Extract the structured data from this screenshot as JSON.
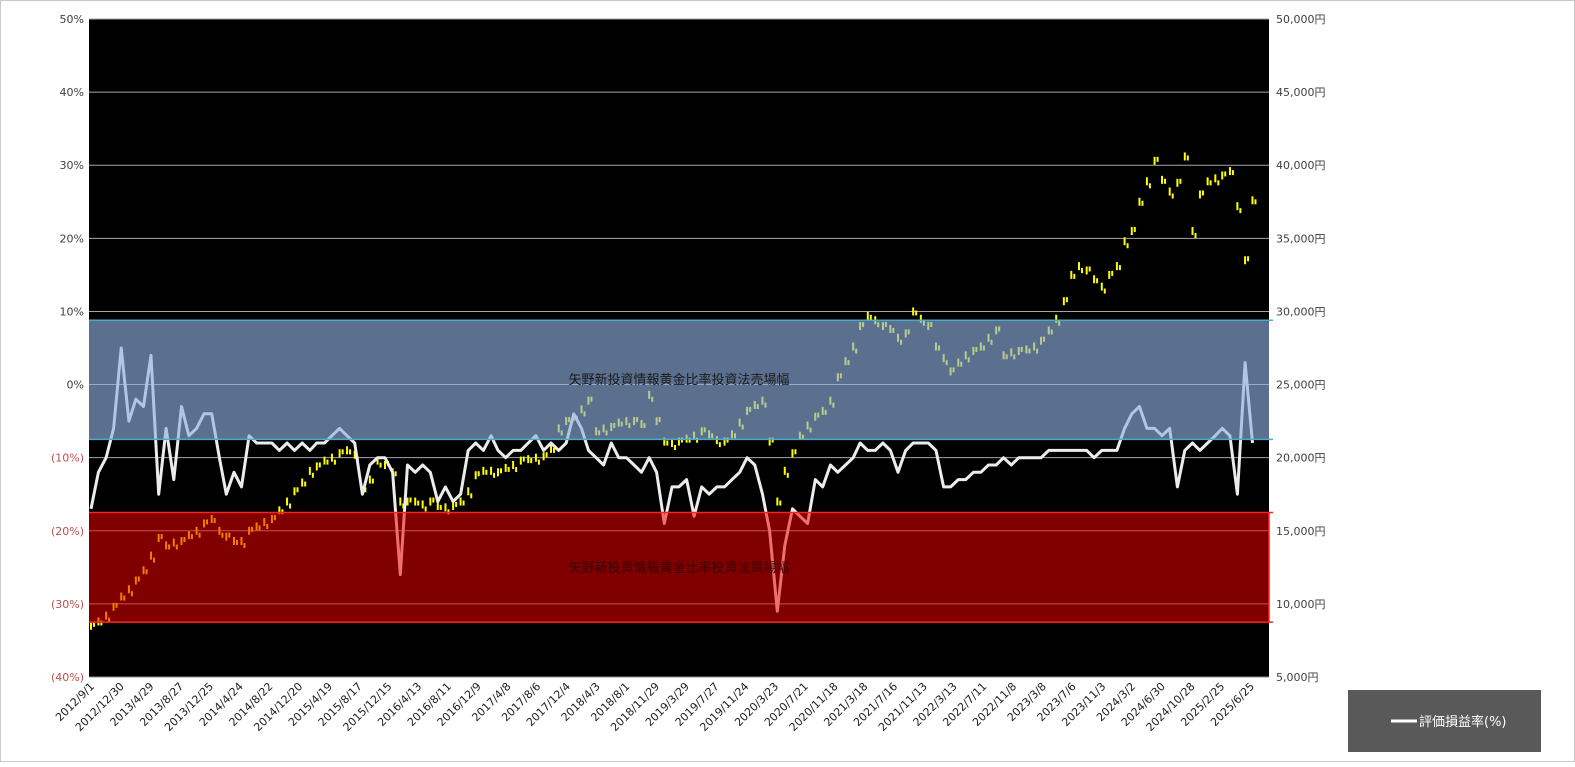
{
  "chart_data": {
    "type": "line",
    "title": "",
    "xlabel": "",
    "ylabel": "",
    "grid": true,
    "legend_position": "bottom-right",
    "x_tick_labels": [
      "2012/9/1",
      "2012/12/30",
      "2013/4/29",
      "2013/8/27",
      "2013/12/25",
      "2014/4/24",
      "2014/8/22",
      "2014/12/20",
      "2015/4/19",
      "2015/8/17",
      "2015/12/15",
      "2016/4/13",
      "2016/8/11",
      "2016/12/9",
      "2017/4/8",
      "2017/8/6",
      "2017/12/4",
      "2018/4/3",
      "2018/8/1",
      "2018/11/29",
      "2019/3/29",
      "2019/7/27",
      "2019/11/24",
      "2020/3/23",
      "2020/7/21",
      "2020/11/18",
      "2021/3/18",
      "2021/7/16",
      "2021/11/13",
      "2022/3/13",
      "2022/7/11",
      "2022/11/8",
      "2023/3/8",
      "2023/7/6",
      "2023/11/3",
      "2024/3/2",
      "2024/6/30",
      "2024/10/28",
      "2025/2/25",
      "2025/6/25"
    ],
    "y_left": {
      "ylim": [
        -40,
        50
      ],
      "ticks": [
        50,
        40,
        30,
        20,
        10,
        0,
        -10,
        -20,
        -30,
        -40
      ],
      "tick_labels": [
        "50%",
        "40%",
        "30%",
        "20%",
        "10%",
        "0%",
        "(10%)",
        "(20%)",
        "(30%)",
        "(40%)"
      ]
    },
    "y_right": {
      "ylim": [
        5000,
        50000
      ],
      "ticks": [
        50000,
        45000,
        40000,
        35000,
        30000,
        25000,
        20000,
        15000,
        10000,
        5000
      ],
      "tick_labels": [
        "50,000円",
        "45,000円",
        "40,000円",
        "35,000円",
        "30,000円",
        "25,000円",
        "20,000円",
        "15,000円",
        "10,000円",
        "5,000円"
      ]
    },
    "bands": [
      {
        "label": "矢野新投資情報黄金比率投資法売場幅",
        "from_pct": -7.5,
        "to_pct": 8.8,
        "color": "#8fafe0",
        "edge_color": "#4bacc6"
      },
      {
        "label": "矢野新投資情報黄金比率投資法買場幅",
        "from_pct": -32.5,
        "to_pct": -17.5,
        "color": "#f20000",
        "edge_color": "#ff2020"
      }
    ],
    "x": [
      "2012/09",
      "2012/10",
      "2012/11",
      "2012/12",
      "2013/01",
      "2013/02",
      "2013/03",
      "2013/04",
      "2013/05",
      "2013/06",
      "2013/07",
      "2013/08",
      "2013/09",
      "2013/10",
      "2013/11",
      "2013/12",
      "2014/01",
      "2014/02",
      "2014/03",
      "2014/04",
      "2014/05",
      "2014/06",
      "2014/07",
      "2014/08",
      "2014/09",
      "2014/10",
      "2014/11",
      "2014/12",
      "2015/01",
      "2015/02",
      "2015/03",
      "2015/04",
      "2015/05",
      "2015/06",
      "2015/07",
      "2015/08",
      "2015/09",
      "2015/10",
      "2015/11",
      "2015/12",
      "2016/01",
      "2016/02",
      "2016/03",
      "2016/04",
      "2016/05",
      "2016/06",
      "2016/07",
      "2016/08",
      "2016/09",
      "2016/10",
      "2016/11",
      "2016/12",
      "2017/01",
      "2017/02",
      "2017/03",
      "2017/04",
      "2017/05",
      "2017/06",
      "2017/07",
      "2017/08",
      "2017/09",
      "2017/10",
      "2017/11",
      "2017/12",
      "2018/01",
      "2018/02",
      "2018/03",
      "2018/04",
      "2018/05",
      "2018/06",
      "2018/07",
      "2018/08",
      "2018/09",
      "2018/10",
      "2018/11",
      "2018/12",
      "2019/01",
      "2019/02",
      "2019/03",
      "2019/04",
      "2019/05",
      "2019/06",
      "2019/07",
      "2019/08",
      "2019/09",
      "2019/10",
      "2019/11",
      "2019/12",
      "2020/01",
      "2020/02",
      "2020/03",
      "2020/04",
      "2020/05",
      "2020/06",
      "2020/07",
      "2020/08",
      "2020/09",
      "2020/10",
      "2020/11",
      "2020/12",
      "2021/01",
      "2021/02",
      "2021/03",
      "2021/04",
      "2021/05",
      "2021/06",
      "2021/07",
      "2021/08",
      "2021/09",
      "2021/10",
      "2021/11",
      "2021/12",
      "2022/01",
      "2022/02",
      "2022/03",
      "2022/04",
      "2022/05",
      "2022/06",
      "2022/07",
      "2022/08",
      "2022/09",
      "2022/10",
      "2022/11",
      "2022/12",
      "2023/01",
      "2023/02",
      "2023/03",
      "2023/04",
      "2023/05",
      "2023/06",
      "2023/07",
      "2023/08",
      "2023/09",
      "2023/10",
      "2023/11",
      "2023/12",
      "2024/01",
      "2024/02",
      "2024/03",
      "2024/04",
      "2024/05",
      "2024/06",
      "2024/07",
      "2024/08",
      "2024/09",
      "2024/10",
      "2024/11",
      "2024/12",
      "2025/01",
      "2025/02",
      "2025/03",
      "2025/04",
      "2025/05",
      "2025/06",
      "2025/07"
    ],
    "series": [
      {
        "name": "評価損益率(%)",
        "axis": "left",
        "color": "#ffffff",
        "values": [
          -17,
          -12,
          -10,
          -6,
          5,
          -5,
          -2,
          -3,
          4,
          -15,
          -6,
          -13,
          -3,
          -7,
          -6,
          -4,
          -4,
          -10,
          -15,
          -12,
          -14,
          -7,
          -8,
          -8,
          -8,
          -9,
          -8,
          -9,
          -8,
          -9,
          -8,
          -8,
          -7,
          -6,
          -7,
          -8,
          -15,
          -11,
          -10,
          -10,
          -12,
          -26,
          -11,
          -12,
          -11,
          -12,
          -16,
          -14,
          -16,
          -15,
          -9,
          -8,
          -9,
          -7,
          -9,
          -10,
          -9,
          -9,
          -8,
          -7,
          -9,
          -8,
          -9,
          -8,
          -4,
          -6,
          -9,
          -10,
          -11,
          -8,
          -10,
          -10,
          -11,
          -12,
          -10,
          -12,
          -19,
          -14,
          -14,
          -13,
          -18,
          -14,
          -15,
          -14,
          -14,
          -13,
          -12,
          -10,
          -11,
          -15,
          -20,
          -31,
          -22,
          -17,
          -18,
          -19,
          -13,
          -14,
          -11,
          -12,
          -11,
          -10,
          -8,
          -9,
          -9,
          -8,
          -9,
          -12,
          -9,
          -8,
          -8,
          -8,
          -9,
          -14,
          -14,
          -13,
          -13,
          -12,
          -12,
          -11,
          -11,
          -10,
          -11,
          -10,
          -10,
          -10,
          -10,
          -9,
          -9,
          -9,
          -9,
          -9,
          -9,
          -10,
          -9,
          -9,
          -9,
          -6,
          -4,
          -3,
          -6,
          -6,
          -7,
          -6,
          -14,
          -9,
          -8,
          -9,
          -8,
          -7,
          -6,
          -7,
          -15,
          3,
          -8
        ]
      },
      {
        "axis": "right",
        "color": "#ffff00",
        "values": [
          8500,
          8800,
          9200,
          9800,
          10500,
          11000,
          11600,
          12300,
          13300,
          14500,
          14000,
          14200,
          14300,
          14700,
          15000,
          15500,
          15800,
          15000,
          14600,
          14300,
          14300,
          15000,
          15300,
          15600,
          15800,
          16400,
          17000,
          17700,
          18300,
          19100,
          19400,
          19800,
          20000,
          20300,
          20500,
          20200,
          17700,
          18500,
          19800,
          19500,
          19000,
          17000,
          17000,
          17000,
          16800,
          17000,
          16700,
          16600,
          16700,
          17000,
          17700,
          18800,
          19100,
          19100,
          19000,
          19300,
          19500,
          19800,
          19900,
          20000,
          20100,
          20600,
          22000,
          22500,
          22800,
          23300,
          23900,
          21800,
          22000,
          22100,
          22400,
          22500,
          22500,
          22300,
          24300,
          22500,
          21100,
          21000,
          21100,
          21300,
          21500,
          21800,
          21600,
          21200,
          21100,
          21600,
          22400,
          23200,
          23600,
          23900,
          21100,
          17000,
          19100,
          20300,
          21500,
          22200,
          22800,
          23200,
          23900,
          25500,
          26600,
          27600,
          29000,
          29700,
          29400,
          29000,
          28800,
          28200,
          28500,
          30000,
          29500,
          29000,
          27600,
          26800,
          25900,
          26500,
          27000,
          27300,
          27600,
          28200,
          28700,
          27000,
          27200,
          27300,
          27400,
          27600,
          28000,
          28700,
          29500,
          30700,
          32500,
          33100,
          32800,
          32200,
          31700,
          32500,
          33100,
          34800,
          35500,
          37500,
          38900,
          40300,
          39000,
          38200,
          38800,
          40600,
          35500,
          38000,
          38900,
          39100,
          39300,
          39600,
          37200,
          33500,
          37600
        ]
      }
    ]
  },
  "legend": {
    "label": "評価損益率(%)"
  }
}
